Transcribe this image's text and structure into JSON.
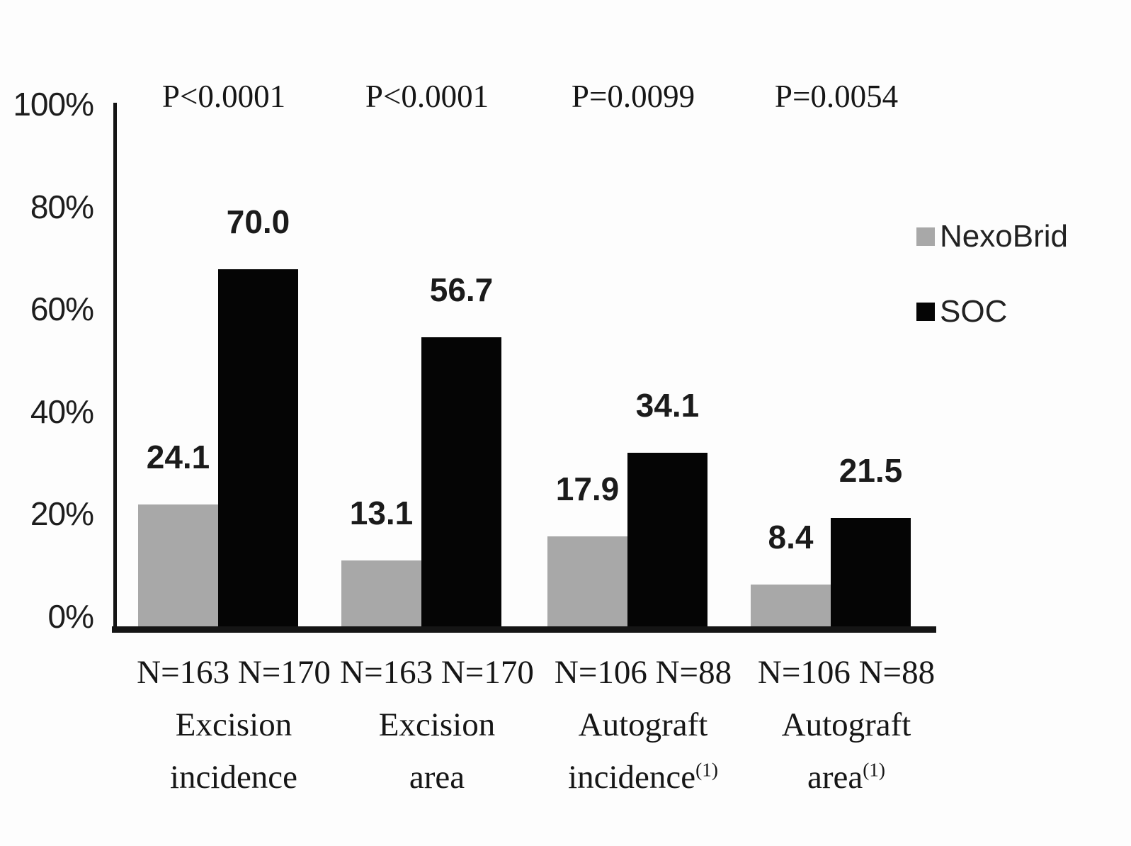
{
  "chart_data": {
    "type": "bar",
    "title": "",
    "xlabel": "",
    "ylabel": "",
    "ylim": [
      0,
      100
    ],
    "y_tick_step": 20,
    "y_tick_labels": [
      "0%",
      "20%",
      "40%",
      "60%",
      "80%",
      "100%"
    ],
    "grid": false,
    "legend_position": "right",
    "categories": [
      {
        "p_value": "P<0.0001",
        "n_line": "N=163 N=170",
        "label_lines": [
          "Excision",
          "incidence"
        ],
        "footnote_superscript": ""
      },
      {
        "p_value": "P<0.0001",
        "n_line": "N=163 N=170",
        "label_lines": [
          "Excision",
          "area"
        ],
        "footnote_superscript": ""
      },
      {
        "p_value": "P=0.0099",
        "n_line": "N=106 N=88",
        "label_lines": [
          "Autograft",
          "incidence"
        ],
        "footnote_superscript": "(1)"
      },
      {
        "p_value": "P=0.0054",
        "n_line": "N=106 N=88",
        "label_lines": [
          "Autograft",
          "area"
        ],
        "footnote_superscript": "(1)"
      }
    ],
    "series": [
      {
        "name": "NexoBrid",
        "color": "#a8a8a8",
        "values": [
          24.1,
          13.1,
          17.9,
          8.4
        ]
      },
      {
        "name": "SOC",
        "color": "#050505",
        "values": [
          70.0,
          56.7,
          34.1,
          21.5
        ]
      }
    ]
  },
  "colors": {
    "axis": "#151515",
    "text": "#1a1a1a"
  }
}
